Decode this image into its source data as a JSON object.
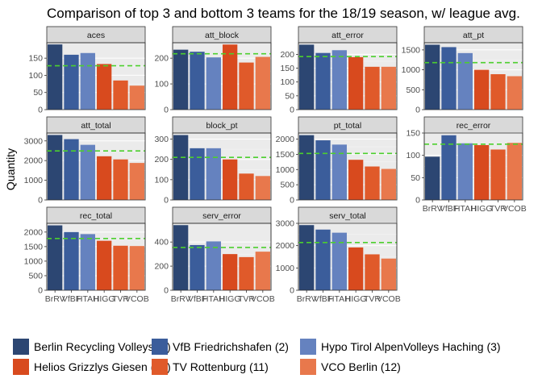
{
  "chart_data": {
    "type": "bar",
    "title": "Comparison of top 3 and bottom 3 teams for the 18/19 season, w/ league avg.",
    "ylabel": "Quantity",
    "xlabel": "",
    "categories": [
      "BrRV",
      "VfBF",
      "HTAH",
      "HIGG",
      "TVR",
      "VCOB"
    ],
    "colors": [
      "#2c4672",
      "#3b5d9b",
      "#6582bf",
      "#d84a1e",
      "#e05a2a",
      "#e8784c"
    ],
    "avg_line_color": "#4ccf2e",
    "legend": [
      "Berlin Recycling Volleys (1)",
      "VfB Friedrichshafen (2)",
      "Hypo Tirol AlpenVolleys Haching (3)",
      "Helios Grizzlys Giesen (10)",
      "TV Rottenburg (11)",
      "VCO Berlin (12)"
    ],
    "legend_position": "bottom",
    "grid": true,
    "panels": [
      {
        "name": "aces",
        "values": [
          190,
          160,
          165,
          133,
          85,
          70
        ],
        "avg": 128,
        "ylim": [
          0,
          195
        ],
        "yticks": [
          0,
          50,
          100,
          150
        ]
      },
      {
        "name": "att_block",
        "values": [
          233,
          225,
          203,
          253,
          183,
          205
        ],
        "avg": 217,
        "ylim": [
          0,
          260
        ],
        "yticks": [
          0,
          100,
          200
        ]
      },
      {
        "name": "att_error",
        "values": [
          235,
          205,
          215,
          190,
          155,
          155
        ],
        "avg": 192,
        "ylim": [
          0,
          242
        ],
        "yticks": [
          0,
          50,
          100,
          150,
          200
        ]
      },
      {
        "name": "att_pt",
        "values": [
          1630,
          1570,
          1420,
          1000,
          890,
          840
        ],
        "avg": 1180,
        "ylim": [
          0,
          1680
        ],
        "yticks": [
          0,
          500,
          1000,
          1500
        ]
      },
      {
        "name": "att_total",
        "values": [
          3300,
          3090,
          2800,
          2220,
          2060,
          1880
        ],
        "avg": 2490,
        "ylim": [
          0,
          3400
        ],
        "yticks": [
          0,
          1000,
          2000,
          3000
        ]
      },
      {
        "name": "block_pt",
        "values": [
          320,
          255,
          255,
          200,
          130,
          118
        ],
        "avg": 210,
        "ylim": [
          0,
          330
        ],
        "yticks": [
          0,
          100,
          200,
          300
        ]
      },
      {
        "name": "pt_total",
        "values": [
          2130,
          1960,
          1820,
          1320,
          1100,
          1020
        ],
        "avg": 1530,
        "ylim": [
          0,
          2200
        ],
        "yticks": [
          0,
          500,
          1000,
          1500,
          2000
        ]
      },
      {
        "name": "rec_error",
        "values": [
          97,
          145,
          127,
          123,
          113,
          128
        ],
        "avg": 125,
        "ylim": [
          0,
          150
        ],
        "yticks": [
          0,
          50,
          100,
          150
        ]
      },
      {
        "name": "rec_total",
        "values": [
          2230,
          2000,
          1930,
          1700,
          1530,
          1520
        ],
        "avg": 1780,
        "ylim": [
          0,
          2300
        ],
        "yticks": [
          0,
          500,
          1000,
          1500,
          2000
        ]
      },
      {
        "name": "serv_error",
        "values": [
          540,
          375,
          405,
          300,
          275,
          320
        ],
        "avg": 355,
        "ylim": [
          0,
          555
        ],
        "yticks": [
          0,
          200,
          400
        ]
      },
      {
        "name": "serv_total",
        "values": [
          2920,
          2720,
          2580,
          1920,
          1610,
          1420
        ],
        "avg": 2140,
        "ylim": [
          0,
          3000
        ],
        "yticks": [
          0,
          1000,
          2000,
          3000
        ]
      }
    ]
  }
}
